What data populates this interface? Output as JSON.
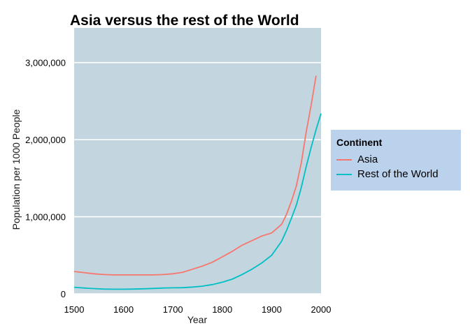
{
  "chart_data": {
    "type": "line",
    "title": "Asia versus the rest of the World",
    "xlabel": "Year",
    "ylabel": "Population per 1000 People",
    "xlim": [
      1500,
      2000
    ],
    "ylim": [
      0,
      3450000
    ],
    "x_ticks": [
      1500,
      1600,
      1700,
      1800,
      1900,
      2000
    ],
    "x_tick_labels": [
      "1500",
      "1600",
      "1700",
      "1800",
      "1900",
      "2000"
    ],
    "y_ticks": [
      0,
      1000000,
      2000000,
      3000000
    ],
    "y_tick_labels": [
      "0",
      "1,000,000",
      "2,000,000",
      "3,000,000"
    ],
    "grid": true,
    "panel_background": "#c3d5df",
    "legend": {
      "title": "Continent",
      "position": "right",
      "background": "#bad2ec"
    },
    "series": [
      {
        "name": "Asia",
        "color": "#f8766d",
        "points": [
          [
            1500,
            290000
          ],
          [
            1520,
            275000
          ],
          [
            1540,
            260000
          ],
          [
            1560,
            250000
          ],
          [
            1580,
            245000
          ],
          [
            1600,
            245000
          ],
          [
            1620,
            245000
          ],
          [
            1640,
            245000
          ],
          [
            1660,
            245000
          ],
          [
            1680,
            250000
          ],
          [
            1700,
            260000
          ],
          [
            1720,
            280000
          ],
          [
            1740,
            320000
          ],
          [
            1760,
            360000
          ],
          [
            1780,
            410000
          ],
          [
            1800,
            480000
          ],
          [
            1820,
            550000
          ],
          [
            1840,
            630000
          ],
          [
            1860,
            690000
          ],
          [
            1880,
            750000
          ],
          [
            1900,
            790000
          ],
          [
            1920,
            900000
          ],
          [
            1930,
            1030000
          ],
          [
            1940,
            1200000
          ],
          [
            1950,
            1400000
          ],
          [
            1960,
            1700000
          ],
          [
            1970,
            2100000
          ],
          [
            1980,
            2450000
          ],
          [
            1990,
            2830000
          ]
        ]
      },
      {
        "name": "Rest of the World",
        "color": "#00bfc4",
        "points": [
          [
            1500,
            85000
          ],
          [
            1520,
            75000
          ],
          [
            1540,
            68000
          ],
          [
            1560,
            62000
          ],
          [
            1580,
            60000
          ],
          [
            1600,
            60000
          ],
          [
            1620,
            62000
          ],
          [
            1640,
            65000
          ],
          [
            1660,
            70000
          ],
          [
            1680,
            75000
          ],
          [
            1700,
            78000
          ],
          [
            1720,
            80000
          ],
          [
            1740,
            88000
          ],
          [
            1760,
            100000
          ],
          [
            1780,
            120000
          ],
          [
            1800,
            150000
          ],
          [
            1820,
            190000
          ],
          [
            1840,
            250000
          ],
          [
            1860,
            320000
          ],
          [
            1880,
            400000
          ],
          [
            1900,
            500000
          ],
          [
            1920,
            680000
          ],
          [
            1930,
            820000
          ],
          [
            1940,
            980000
          ],
          [
            1950,
            1150000
          ],
          [
            1960,
            1380000
          ],
          [
            1970,
            1650000
          ],
          [
            1980,
            1900000
          ],
          [
            1990,
            2130000
          ],
          [
            2000,
            2340000
          ]
        ]
      }
    ]
  }
}
